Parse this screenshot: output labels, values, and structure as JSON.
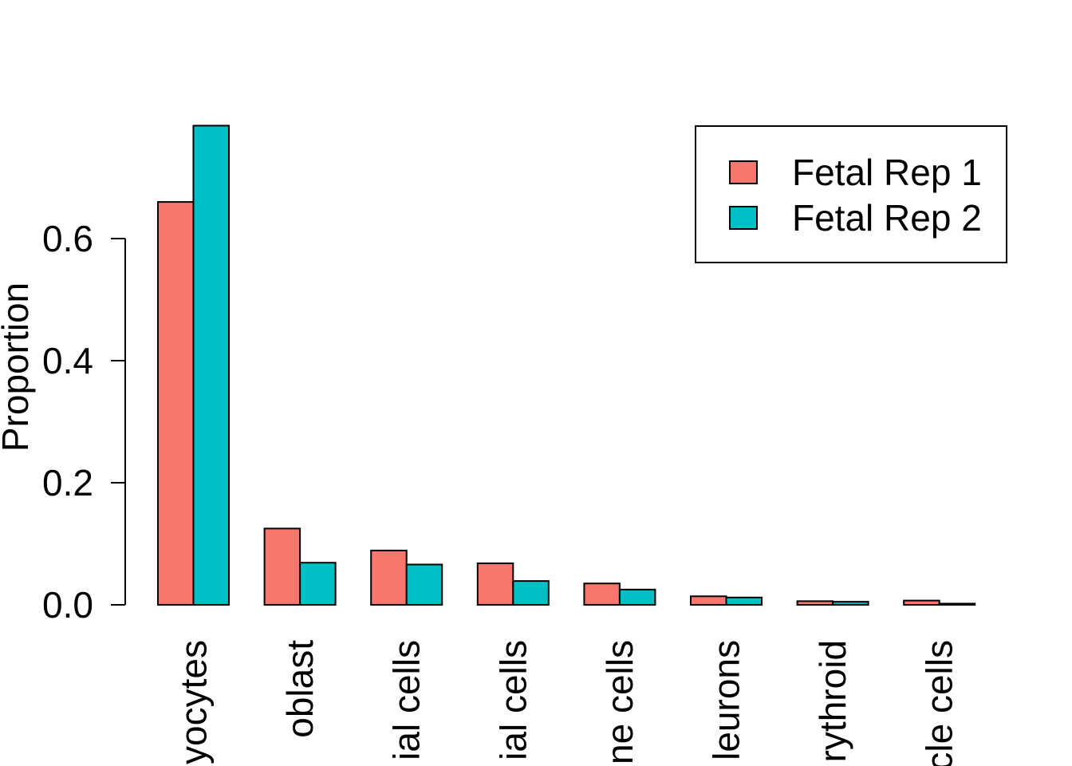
{
  "chart_data": {
    "type": "bar",
    "title": "",
    "xlabel": "",
    "ylabel": "Proportion",
    "ylim": [
      0,
      0.8
    ],
    "yticks": [
      0.0,
      0.2,
      0.4,
      0.6
    ],
    "ytick_labels": [
      "0.0",
      "0.2",
      "0.4",
      "0.6"
    ],
    "legend_position": "top-right",
    "categories": [
      "yocytes",
      "oblast",
      "ial cells",
      "ial cells",
      "ne cells",
      "leurons",
      "rythroid",
      "cle cells"
    ],
    "series": [
      {
        "name": "Fetal Rep 1",
        "color": "#F8766D",
        "values": [
          0.66,
          0.125,
          0.089,
          0.068,
          0.035,
          0.014,
          0.006,
          0.007
        ]
      },
      {
        "name": "Fetal Rep 2",
        "color": "#00BFC4",
        "values": [
          0.785,
          0.069,
          0.066,
          0.039,
          0.025,
          0.012,
          0.005,
          0.002
        ]
      }
    ]
  }
}
